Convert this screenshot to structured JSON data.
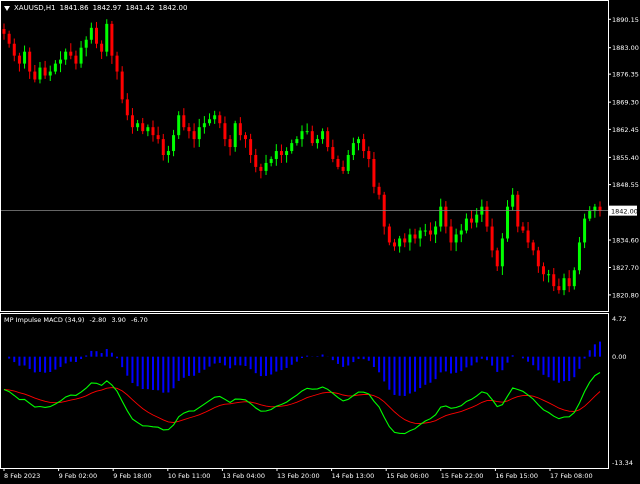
{
  "symbol": {
    "name": "XAUUSD,H1",
    "open": "1841.86",
    "high": "1842.97",
    "low": "1841.42",
    "close": "1842.00"
  },
  "price_axis": {
    "labels": [
      "1890.15",
      "1883.00",
      "1876.35",
      "1869.30",
      "1862.45",
      "1855.40",
      "1848.55",
      "1834.60",
      "1827.70",
      "1820.80"
    ],
    "current_price": "1842.00"
  },
  "indicator": {
    "name": "MP Impulse MACD (34,9)",
    "v1": "-2.80",
    "v2": "3.90",
    "v3": "-6.70",
    "axis_labels": [
      "4.72",
      "0.00",
      "-13.34"
    ]
  },
  "time_axis": [
    "8 Feb 2023",
    "9 Feb 02:00",
    "9 Feb 18:00",
    "10 Feb 11:00",
    "13 Feb 04:00",
    "13 Feb 20:00",
    "14 Feb 13:00",
    "15 Feb 06:00",
    "15 Feb 22:00",
    "16 Feb 15:00",
    "17 Feb 08:00"
  ],
  "colors": {
    "background": "#000000",
    "bull_candle": "#00ff00",
    "bear_candle": "#ff0000",
    "histogram": "#0000ff",
    "signal_fast": "#00ff00",
    "signal_slow": "#ff0000",
    "axis_text": "#ffffff",
    "price_line": "#888888"
  },
  "chart_data": {
    "type": "candlestick",
    "price_range": [
      1817.0,
      1894.5
    ],
    "closes": [
      1886.5,
      1884,
      1881,
      1879,
      1882,
      1877,
      1875,
      1878,
      1876,
      1877,
      1879,
      1880,
      1882,
      1881,
      1879,
      1883,
      1885,
      1888,
      1884,
      1882,
      1889,
      1881,
      1877,
      1870,
      1866,
      1863,
      1864,
      1862,
      1863,
      1861,
      1860,
      1856,
      1857,
      1861,
      1866,
      1863,
      1862,
      1860,
      1863,
      1864,
      1865,
      1866,
      1864,
      1860,
      1858,
      1864,
      1861,
      1860,
      1856,
      1853,
      1852,
      1854,
      1855,
      1857,
      1856,
      1857,
      1859,
      1860,
      1862,
      1862,
      1859,
      1860,
      1862,
      1858,
      1855,
      1853,
      1852,
      1856,
      1859,
      1860,
      1857,
      1855,
      1848,
      1846,
      1838,
      1834,
      1833,
      1835,
      1834,
      1836,
      1835,
      1837,
      1837,
      1836,
      1838,
      1843,
      1838,
      1834,
      1836,
      1837,
      1840,
      1839,
      1841,
      1843,
      1838,
      1832,
      1828,
      1835,
      1843,
      1846,
      1838,
      1837,
      1834,
      1832,
      1828,
      1826,
      1826,
      1823,
      1822,
      1825,
      1823,
      1827,
      1834,
      1840,
      1842,
      1843,
      1842
    ],
    "macd_axis_range": [
      -13.34,
      4.72
    ]
  }
}
